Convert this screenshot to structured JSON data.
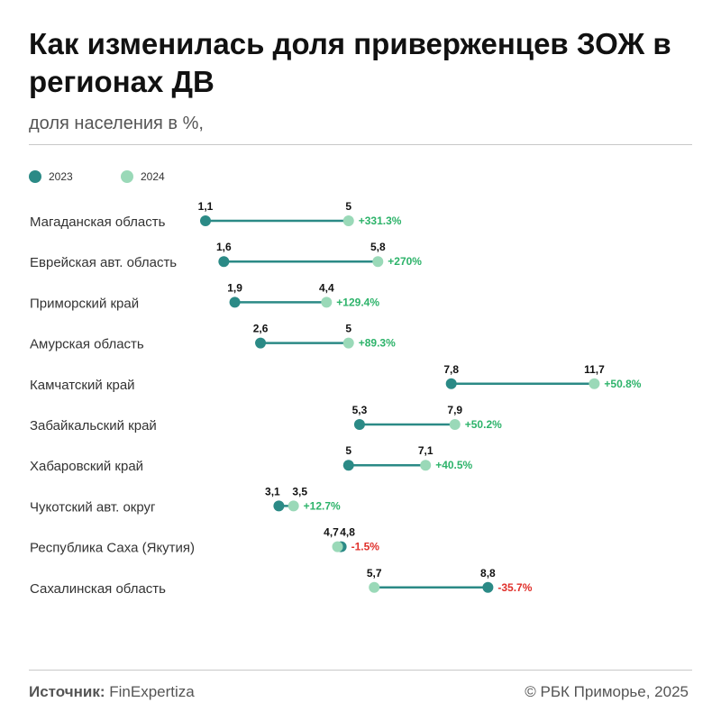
{
  "title": "Как изменилась доля приверженцев ЗОЖ в регионах ДВ",
  "subtitle": "доля населения в %,",
  "footer": {
    "source_label": "Источник:",
    "source_value": "FinExpertiza",
    "copyright": "© РБК Приморье, 2025"
  },
  "colors": {
    "y2023": "#2b8a86",
    "y2024": "#9ad9b8",
    "positive": "#2db36a",
    "negative": "#e0302b"
  },
  "chart_data": {
    "type": "dumbbell",
    "series": [
      {
        "name": "2023",
        "key": "v2023"
      },
      {
        "name": "2024",
        "key": "v2024"
      }
    ],
    "rows": [
      {
        "region": "Магаданская область",
        "v2023": "1,1",
        "v2024": "5",
        "change": "+331.3%"
      },
      {
        "region": "Еврейская авт. область",
        "v2023": "1,6",
        "v2024": "5,8",
        "change": "+270%"
      },
      {
        "region": "Приморский край",
        "v2023": "1,9",
        "v2024": "4,4",
        "change": "+129.4%"
      },
      {
        "region": "Амурская область",
        "v2023": "2,6",
        "v2024": "5",
        "change": "+89.3%"
      },
      {
        "region": "Камчатский край",
        "v2023": "7,8",
        "v2024": "11,7",
        "change": "+50.8%"
      },
      {
        "region": "Забайкальский край",
        "v2023": "5,3",
        "v2024": "7,9",
        "change": "+50.2%"
      },
      {
        "region": "Хабаровский край",
        "v2023": "5",
        "v2024": "7,1",
        "change": "+40.5%"
      },
      {
        "region": "Чукотский авт. округ",
        "v2023": "3,1",
        "v2024": "3,5",
        "change": "+12.7%"
      },
      {
        "region": "Республика Саха (Якутия)",
        "v2023": "4,8",
        "v2024": "4,7",
        "change": "-1.5%"
      },
      {
        "region": "Сахалинская область",
        "v2023": "8,8",
        "v2024": "5,7",
        "change": "-35.7%"
      }
    ]
  }
}
